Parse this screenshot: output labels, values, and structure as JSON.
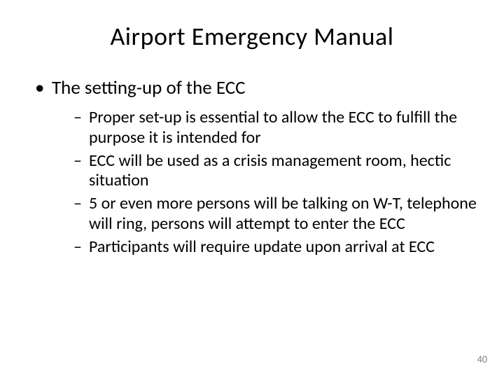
{
  "slide": {
    "title": "Airport Emergency Manual",
    "main_bullet": "The setting-up of the ECC",
    "sub_bullets": [
      "Proper set-up is essential to allow the ECC to fulfill the purpose it is intended for",
      "ECC will be used as a crisis management room, hectic situation",
      "5 or even more persons will be talking on W-T, telephone will ring, persons will attempt to enter the ECC",
      "Participants will require update upon arrival at ECC"
    ],
    "page_number": "40",
    "styling": {
      "background_color": "#ffffff",
      "text_color": "#000000",
      "page_number_color": "#808080",
      "title_fontsize": 36,
      "bullet1_fontsize": 27,
      "bullet2_fontsize": 24,
      "page_number_fontsize": 14,
      "font_family": "Calibri"
    }
  }
}
